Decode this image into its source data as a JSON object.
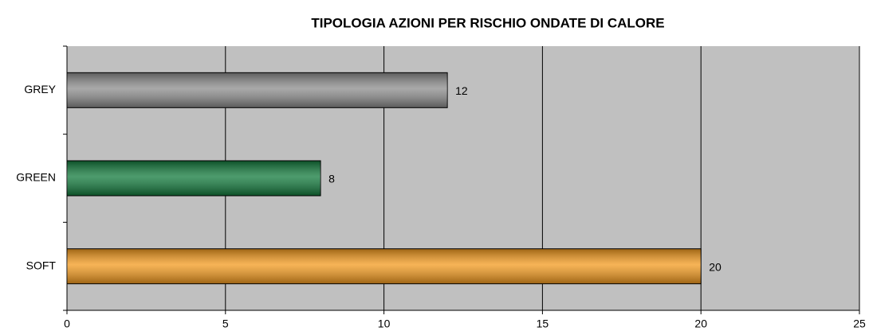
{
  "chart_data": {
    "type": "hbar",
    "title": "TIPOLOGIA AZIONI PER RISCHIO ONDATE DI CALORE",
    "categories": [
      "GREY",
      "GREEN",
      "SOFT"
    ],
    "values": [
      12,
      8,
      20
    ],
    "colors": [
      "#8c8c8c",
      "#127a3c",
      "#f39a1e"
    ],
    "xlim": [
      0,
      25
    ],
    "xticks": [
      0,
      5,
      10,
      15,
      20,
      25
    ],
    "grid": true
  }
}
